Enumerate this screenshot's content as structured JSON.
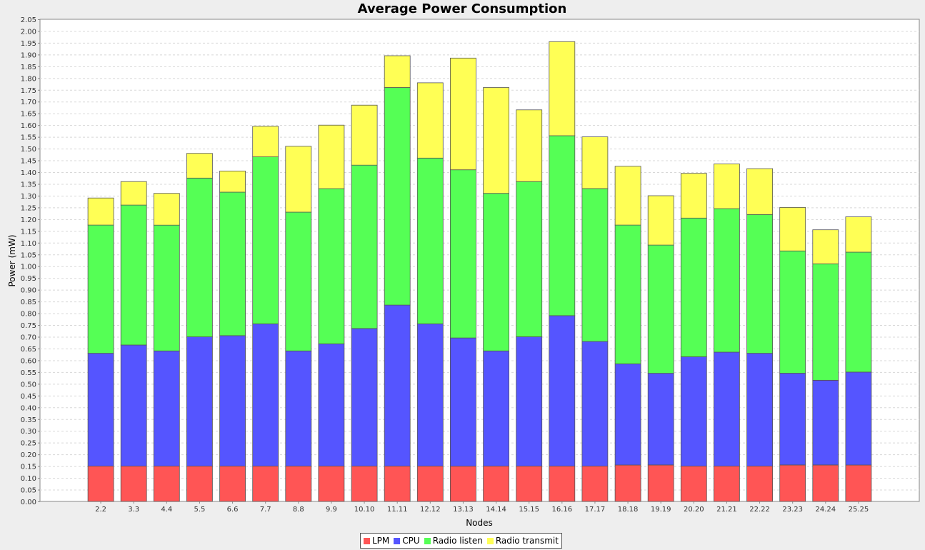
{
  "chart_data": {
    "type": "bar",
    "stacked": true,
    "title": "Average Power Consumption",
    "xlabel": "Nodes",
    "ylabel": "Power (mW)",
    "ylim": [
      0,
      2.05
    ],
    "ytick_step": 0.05,
    "grid": true,
    "legend_position": "bottom",
    "categories": [
      "2.2",
      "3.3",
      "4.4",
      "5.5",
      "6.6",
      "7.7",
      "8.8",
      "9.9",
      "10.10",
      "11.11",
      "12.12",
      "13.13",
      "14.14",
      "15.15",
      "16.16",
      "17.17",
      "18.18",
      "19.19",
      "20.20",
      "21.21",
      "22.22",
      "23.23",
      "24.24",
      "25.25"
    ],
    "series": [
      {
        "name": "LPM",
        "color": "#ff5555",
        "values": [
          0.15,
          0.15,
          0.15,
          0.15,
          0.15,
          0.15,
          0.15,
          0.15,
          0.15,
          0.15,
          0.15,
          0.15,
          0.15,
          0.15,
          0.15,
          0.15,
          0.155,
          0.155,
          0.15,
          0.15,
          0.15,
          0.155,
          0.155,
          0.155
        ]
      },
      {
        "name": "CPU",
        "color": "#5555ff",
        "values": [
          0.48,
          0.515,
          0.49,
          0.55,
          0.555,
          0.605,
          0.49,
          0.52,
          0.585,
          0.685,
          0.605,
          0.545,
          0.49,
          0.55,
          0.64,
          0.53,
          0.43,
          0.39,
          0.465,
          0.485,
          0.48,
          0.39,
          0.36,
          0.395
        ]
      },
      {
        "name": "Radio listen",
        "color": "#55ff55",
        "values": [
          0.545,
          0.595,
          0.535,
          0.675,
          0.61,
          0.71,
          0.59,
          0.66,
          0.695,
          0.925,
          0.705,
          0.715,
          0.67,
          0.66,
          0.765,
          0.65,
          0.59,
          0.545,
          0.59,
          0.61,
          0.59,
          0.52,
          0.495,
          0.51
        ]
      },
      {
        "name": "Radio transmit",
        "color": "#ffff55",
        "values": [
          0.115,
          0.1,
          0.135,
          0.105,
          0.09,
          0.13,
          0.28,
          0.27,
          0.255,
          0.135,
          0.32,
          0.475,
          0.45,
          0.305,
          0.4,
          0.22,
          0.25,
          0.21,
          0.19,
          0.19,
          0.195,
          0.185,
          0.145,
          0.15
        ]
      }
    ]
  }
}
